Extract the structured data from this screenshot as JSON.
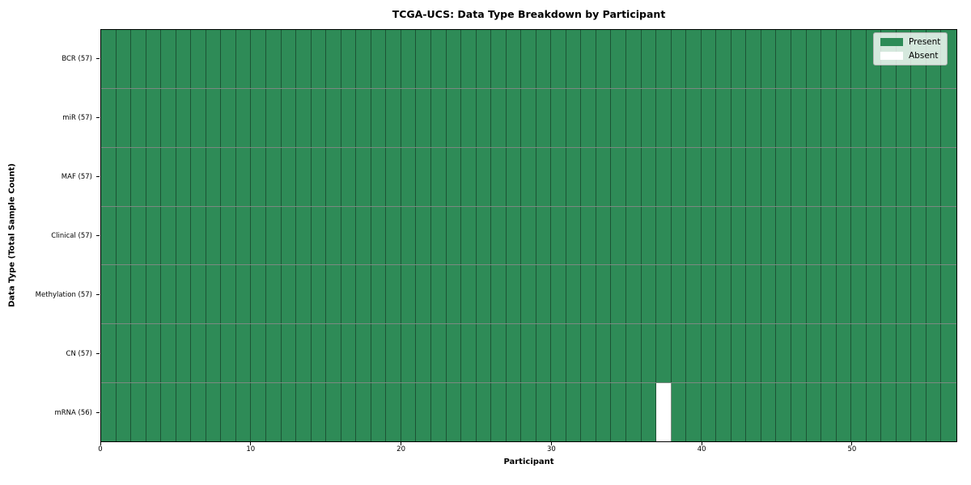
{
  "title": "TCGA-UCS: Data Type Breakdown by Participant",
  "xlabel": "Participant",
  "ylabel": "Data Type (Total Sample Count)",
  "legend": {
    "present_label": "Present",
    "absent_label": "Absent",
    "position": "upper right"
  },
  "colors": {
    "present": "#2E8B57",
    "absent": "#ffffff",
    "cell_edge": "rgba(15,40,26,0.55)",
    "spine": "#000000"
  },
  "chart_data": {
    "type": "heatmap",
    "title": "TCGA-UCS: Data Type Breakdown by Participant",
    "xlabel": "Participant",
    "ylabel": "Data Type (Total Sample Count)",
    "n_participants": 57,
    "xlim": [
      0,
      57
    ],
    "x_ticks": [
      0,
      10,
      20,
      30,
      40,
      50
    ],
    "value_encoding": "1 = Present (green), 0 = Absent (white)",
    "legend_entries": [
      "Present",
      "Absent"
    ],
    "legend_position": "upper right",
    "grid": false,
    "rows": [
      {
        "label": "BCR (57)",
        "data_type": "BCR",
        "present_count": 57,
        "absent_indices": []
      },
      {
        "label": "miR (57)",
        "data_type": "miR",
        "present_count": 57,
        "absent_indices": []
      },
      {
        "label": "MAF (57)",
        "data_type": "MAF",
        "present_count": 57,
        "absent_indices": []
      },
      {
        "label": "Clinical (57)",
        "data_type": "Clinical",
        "present_count": 57,
        "absent_indices": []
      },
      {
        "label": "Methylation (57)",
        "data_type": "Methylation",
        "present_count": 57,
        "absent_indices": []
      },
      {
        "label": "CN (57)",
        "data_type": "CN",
        "present_count": 57,
        "absent_indices": []
      },
      {
        "label": "mRNA (56)",
        "data_type": "mRNA",
        "present_count": 56,
        "absent_indices": [
          37
        ]
      }
    ]
  }
}
